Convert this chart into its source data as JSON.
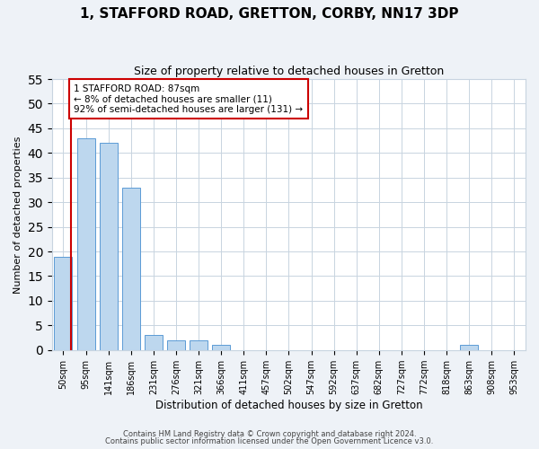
{
  "title": "1, STAFFORD ROAD, GRETTON, CORBY, NN17 3DP",
  "subtitle": "Size of property relative to detached houses in Gretton",
  "xlabel": "Distribution of detached houses by size in Gretton",
  "ylabel": "Number of detached properties",
  "categories": [
    "50sqm",
    "95sqm",
    "141sqm",
    "186sqm",
    "231sqm",
    "276sqm",
    "321sqm",
    "366sqm",
    "411sqm",
    "457sqm",
    "502sqm",
    "547sqm",
    "592sqm",
    "637sqm",
    "682sqm",
    "727sqm",
    "772sqm",
    "818sqm",
    "863sqm",
    "908sqm",
    "953sqm"
  ],
  "values": [
    19,
    43,
    42,
    33,
    3,
    2,
    2,
    1,
    0,
    0,
    0,
    0,
    0,
    0,
    0,
    0,
    0,
    0,
    1,
    0,
    0
  ],
  "bar_color": "#bdd7ee",
  "bar_edge_color": "#5b9bd5",
  "ylim": [
    0,
    55
  ],
  "yticks": [
    0,
    5,
    10,
    15,
    20,
    25,
    30,
    35,
    40,
    45,
    50,
    55
  ],
  "property_line_color": "#cc0000",
  "annotation_line1": "1 STAFFORD ROAD: 87sqm",
  "annotation_line2": "← 8% of detached houses are smaller (11)",
  "annotation_line3": "92% of semi-detached houses are larger (131) →",
  "annotation_box_color": "#cc0000",
  "footer_line1": "Contains HM Land Registry data © Crown copyright and database right 2024.",
  "footer_line2": "Contains public sector information licensed under the Open Government Licence v3.0.",
  "bg_color": "#eef2f7",
  "plot_bg_color": "#ffffff",
  "grid_color": "#c8d4e0"
}
